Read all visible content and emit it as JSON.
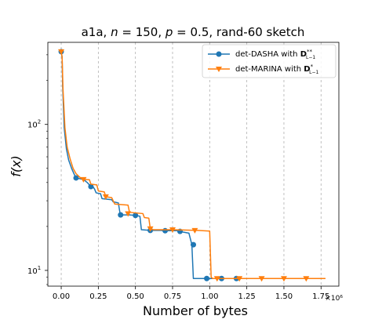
{
  "chart_data": {
    "type": "line",
    "title": "a1a, n = 150, p = 0.5, rand-60 sketch",
    "title_parts": {
      "prefix": "a1a, ",
      "n_sym": "n",
      "n_eq": " = 150, ",
      "p_sym": "p",
      "p_eq": " = 0.5, rand-60 sketch"
    },
    "xlabel": "Number of bytes",
    "ylabel": "f(x)",
    "x_offset_label": "×10⁶",
    "x_scale": "linear",
    "y_scale": "log",
    "xlim": [
      -0.09,
      1.87
    ],
    "ylim": [
      7.8,
      365
    ],
    "x_ticks": [
      0.0,
      0.25,
      0.5,
      0.75,
      1.0,
      1.25,
      1.5,
      1.75
    ],
    "x_tick_labels": [
      "0.00",
      "0.25",
      "0.50",
      "0.75",
      "1.00",
      "1.25",
      "1.50",
      "1.75"
    ],
    "y_major_ticks": [
      10,
      100
    ],
    "grid": "vertical dashed at x ticks",
    "legend_placement": "top-right",
    "series": [
      {
        "name": "det-DASHA with D**L−1",
        "legend_main": "det-DASHA with ",
        "legend_D": "D",
        "legend_sup": "**",
        "legend_sub": "L−1",
        "color": "#1f77b4",
        "marker": "circle",
        "points": [
          [
            0.0,
            315
          ],
          [
            0.006,
            290
          ],
          [
            0.01,
            180
          ],
          [
            0.02,
            95
          ],
          [
            0.035,
            68
          ],
          [
            0.05,
            57
          ],
          [
            0.07,
            50
          ],
          [
            0.09,
            45
          ],
          [
            0.1,
            43
          ],
          [
            0.14,
            42.2
          ],
          [
            0.15,
            42
          ],
          [
            0.175,
            40
          ],
          [
            0.2,
            37.5
          ],
          [
            0.215,
            37.3
          ],
          [
            0.225,
            36
          ],
          [
            0.235,
            34
          ],
          [
            0.265,
            33.5
          ],
          [
            0.275,
            31
          ],
          [
            0.34,
            30.5
          ],
          [
            0.35,
            29.5
          ],
          [
            0.385,
            29
          ],
          [
            0.395,
            25
          ],
          [
            0.4,
            24
          ],
          [
            0.46,
            24
          ],
          [
            0.5,
            23.8
          ],
          [
            0.53,
            23.5
          ],
          [
            0.54,
            19
          ],
          [
            0.6,
            18.8
          ],
          [
            0.67,
            18.8
          ],
          [
            0.7,
            18.7
          ],
          [
            0.78,
            18.7
          ],
          [
            0.8,
            18.5
          ],
          [
            0.82,
            18.3
          ],
          [
            0.86,
            18
          ],
          [
            0.88,
            15
          ],
          [
            0.89,
            8.8
          ],
          [
            0.94,
            8.8
          ],
          [
            1.0,
            8.8
          ],
          [
            1.05,
            8.8
          ],
          [
            1.1,
            8.8
          ],
          [
            1.2,
            8.8
          ]
        ],
        "markers": [
          [
            0.0,
            315
          ],
          [
            0.1,
            43
          ],
          [
            0.2,
            37.5
          ],
          [
            0.4,
            24
          ],
          [
            0.5,
            23.8
          ],
          [
            0.6,
            18.8
          ],
          [
            0.7,
            18.7
          ],
          [
            0.8,
            18.5
          ],
          [
            0.89,
            15
          ],
          [
            0.98,
            8.8
          ],
          [
            1.08,
            8.8
          ],
          [
            1.18,
            8.8
          ]
        ]
      },
      {
        "name": "det-MARINA with D*L−1",
        "legend_main": "det-MARINA with ",
        "legend_D": "D",
        "legend_sup": "*",
        "legend_sub": "L−1",
        "color": "#ff7f0e",
        "marker": "triangle-down",
        "points": [
          [
            0.0,
            315
          ],
          [
            0.006,
            290
          ],
          [
            0.012,
            175
          ],
          [
            0.025,
            95
          ],
          [
            0.04,
            70
          ],
          [
            0.06,
            58
          ],
          [
            0.08,
            50
          ],
          [
            0.1,
            46
          ],
          [
            0.13,
            43
          ],
          [
            0.15,
            42
          ],
          [
            0.19,
            41.8
          ],
          [
            0.2,
            39
          ],
          [
            0.24,
            38.5
          ],
          [
            0.25,
            35
          ],
          [
            0.29,
            34.5
          ],
          [
            0.3,
            32
          ],
          [
            0.34,
            31.5
          ],
          [
            0.36,
            28.5
          ],
          [
            0.45,
            28
          ],
          [
            0.46,
            25
          ],
          [
            0.55,
            24.5
          ],
          [
            0.56,
            23
          ],
          [
            0.59,
            22.8
          ],
          [
            0.6,
            19.3
          ],
          [
            0.62,
            19
          ],
          [
            0.75,
            19
          ],
          [
            0.92,
            18.8
          ],
          [
            1.0,
            18.6
          ],
          [
            1.01,
            9
          ],
          [
            1.02,
            8.8
          ],
          [
            1.1,
            8.8
          ],
          [
            1.2,
            8.8
          ],
          [
            1.35,
            8.8
          ],
          [
            1.5,
            8.8
          ],
          [
            1.65,
            8.8
          ],
          [
            1.78,
            8.8
          ]
        ],
        "markers": [
          [
            0.0,
            315
          ],
          [
            0.15,
            42
          ],
          [
            0.3,
            32
          ],
          [
            0.45,
            24.5
          ],
          [
            0.6,
            19.3
          ],
          [
            0.75,
            19
          ],
          [
            0.9,
            18.8
          ],
          [
            1.05,
            8.8
          ],
          [
            1.2,
            8.8
          ],
          [
            1.35,
            8.8
          ],
          [
            1.5,
            8.8
          ],
          [
            1.65,
            8.8
          ]
        ]
      }
    ]
  }
}
